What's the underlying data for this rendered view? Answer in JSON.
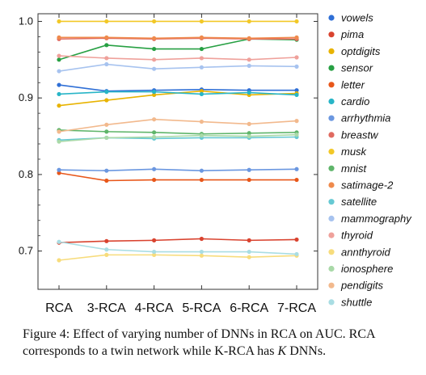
{
  "chart_data": {
    "type": "line",
    "categories": [
      "RCA",
      "3-RCA",
      "4-RCA",
      "5-RCA",
      "6-RCA",
      "7-RCA"
    ],
    "ylim": [
      0.65,
      1.01
    ],
    "yticks": [
      "0.7",
      "0.8",
      "0.9",
      "1.0"
    ],
    "ytick_values": [
      0.7,
      0.8,
      0.9,
      1.0
    ],
    "grid": false,
    "legend_position": "right",
    "series": [
      {
        "name": "vowels",
        "color": "#2f6fd6",
        "values": [
          0.917,
          0.909,
          0.91,
          0.911,
          0.91,
          0.91
        ]
      },
      {
        "name": "pima",
        "color": "#d9432f",
        "values": [
          0.711,
          0.713,
          0.714,
          0.716,
          0.714,
          0.715
        ]
      },
      {
        "name": "optdigits",
        "color": "#e8b300",
        "values": [
          0.89,
          0.897,
          0.904,
          0.909,
          0.904,
          0.906
        ]
      },
      {
        "name": "sensor",
        "color": "#27a043",
        "values": [
          0.95,
          0.969,
          0.964,
          0.964,
          0.977,
          0.976
        ]
      },
      {
        "name": "letter",
        "color": "#e8571a",
        "values": [
          0.802,
          0.792,
          0.793,
          0.793,
          0.793,
          0.793
        ]
      },
      {
        "name": "cardio",
        "color": "#28b5c7",
        "values": [
          0.905,
          0.908,
          0.908,
          0.905,
          0.907,
          0.904
        ]
      },
      {
        "name": "arrhythmia",
        "color": "#6b97e0",
        "values": [
          0.806,
          0.805,
          0.807,
          0.805,
          0.806,
          0.807
        ]
      },
      {
        "name": "breastw",
        "color": "#e06a60",
        "values": [
          0.977,
          0.978,
          0.977,
          0.978,
          0.977,
          0.977
        ]
      },
      {
        "name": "musk",
        "color": "#f2c827",
        "values": [
          1.0,
          1.0,
          1.0,
          1.0,
          1.0,
          1.0
        ]
      },
      {
        "name": "mnist",
        "color": "#5fb56a",
        "values": [
          0.858,
          0.856,
          0.855,
          0.853,
          0.854,
          0.855
        ]
      },
      {
        "name": "satimage-2",
        "color": "#ef8a4c",
        "values": [
          0.979,
          0.979,
          0.978,
          0.979,
          0.978,
          0.979
        ]
      },
      {
        "name": "satellite",
        "color": "#66c9d3",
        "values": [
          0.845,
          0.848,
          0.847,
          0.848,
          0.848,
          0.849
        ]
      },
      {
        "name": "mammography",
        "color": "#a7c3ef",
        "values": [
          0.935,
          0.944,
          0.938,
          0.94,
          0.942,
          0.941
        ]
      },
      {
        "name": "thyroid",
        "color": "#efa19b",
        "values": [
          0.955,
          0.952,
          0.95,
          0.952,
          0.95,
          0.953
        ]
      },
      {
        "name": "annthyroid",
        "color": "#f7dc7c",
        "values": [
          0.688,
          0.695,
          0.695,
          0.694,
          0.692,
          0.694
        ]
      },
      {
        "name": "ionosphere",
        "color": "#a9d9a8",
        "values": [
          0.843,
          0.848,
          0.849,
          0.851,
          0.85,
          0.852
        ]
      },
      {
        "name": "pendigits",
        "color": "#f2b98d",
        "values": [
          0.856,
          0.865,
          0.872,
          0.869,
          0.866,
          0.87
        ]
      },
      {
        "name": "shuttle",
        "color": "#a9dde3",
        "values": [
          0.712,
          0.702,
          0.699,
          0.699,
          0.699,
          0.696
        ]
      }
    ]
  },
  "caption": {
    "line1": "Figure 4: Effect of varying number of DNNs in RCA on AUC. RCA",
    "line2_pre": "corresponds to a twin network while K-RCA has ",
    "line2_k": "K",
    "line2_post": " DNNs."
  }
}
